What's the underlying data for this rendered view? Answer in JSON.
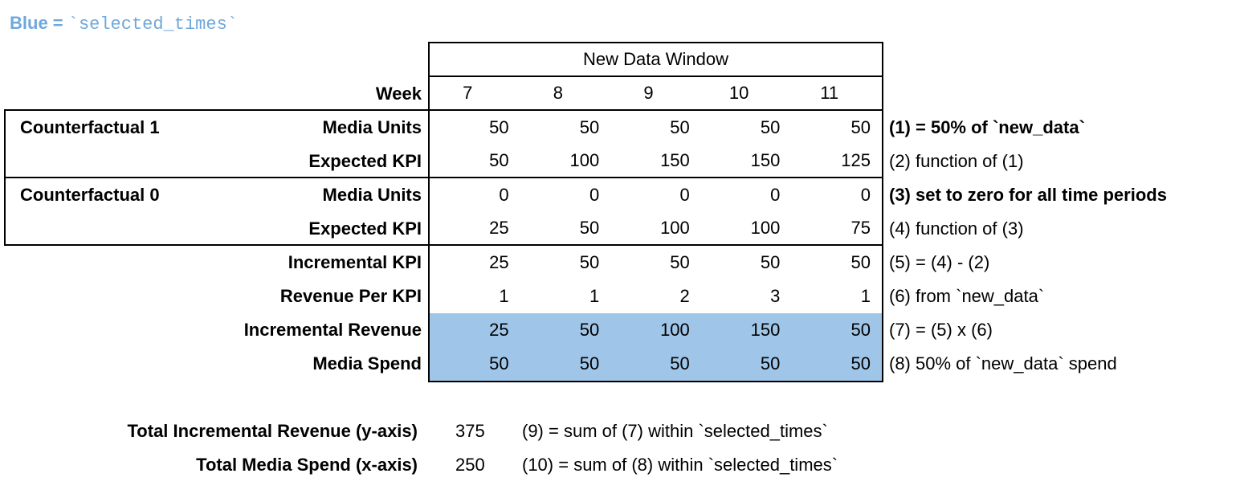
{
  "legend": {
    "prefix": "Blue = ",
    "code": "`selected_times`"
  },
  "table": {
    "header": "New Data Window",
    "week_label": "Week",
    "weeks": [
      "7",
      "8",
      "9",
      "10",
      "11"
    ],
    "groups": [
      {
        "label": "Counterfactual 1"
      },
      {
        "label": "Counterfactual 0"
      }
    ],
    "rows": [
      {
        "label": "Media Units",
        "values": [
          "50",
          "50",
          "50",
          "50",
          "50"
        ],
        "annotation": "(1) = 50% of `new_data`",
        "annotation_bold": true,
        "group_end": false,
        "highlighted": false
      },
      {
        "label": "Expected KPI",
        "values": [
          "50",
          "100",
          "150",
          "150",
          "125"
        ],
        "annotation": "(2) function of (1)",
        "annotation_bold": false,
        "group_end": true,
        "highlighted": false
      },
      {
        "label": "Media Units",
        "values": [
          "0",
          "0",
          "0",
          "0",
          "0"
        ],
        "annotation": "(3) set to zero for all time periods",
        "annotation_bold": true,
        "group_end": false,
        "highlighted": false
      },
      {
        "label": "Expected KPI",
        "values": [
          "25",
          "50",
          "100",
          "100",
          "75"
        ],
        "annotation": "(4) function of (3)",
        "annotation_bold": false,
        "group_end": true,
        "highlighted": false
      },
      {
        "label": "Incremental KPI",
        "values": [
          "25",
          "50",
          "50",
          "50",
          "50"
        ],
        "annotation": "(5) = (4) - (2)",
        "annotation_bold": false,
        "group_end": false,
        "highlighted": false
      },
      {
        "label": "Revenue Per KPI",
        "values": [
          "1",
          "1",
          "2",
          "3",
          "1"
        ],
        "annotation": "(6) from `new_data`",
        "annotation_bold": false,
        "group_end": false,
        "highlighted": false
      },
      {
        "label": "Incremental Revenue",
        "values": [
          "25",
          "50",
          "100",
          "150",
          "50"
        ],
        "annotation": "(7) = (5) x (6)",
        "annotation_bold": false,
        "group_end": false,
        "highlighted": true
      },
      {
        "label": "Media Spend",
        "values": [
          "50",
          "50",
          "50",
          "50",
          "50"
        ],
        "annotation": "(8) 50% of `new_data` spend",
        "annotation_bold": false,
        "group_end": false,
        "highlighted": true
      }
    ]
  },
  "totals": [
    {
      "label": "Total Incremental Revenue (y-axis)",
      "value": "375",
      "annotation": "(9) = sum of (7) within `selected_times`"
    },
    {
      "label": "Total Media Spend (x-axis)",
      "value": "250",
      "annotation": "(10) = sum of (8) within `selected_times`"
    }
  ],
  "colors": {
    "highlight": "#9FC5E8",
    "legend_text": "#6FA8DC",
    "border": "#000000"
  }
}
